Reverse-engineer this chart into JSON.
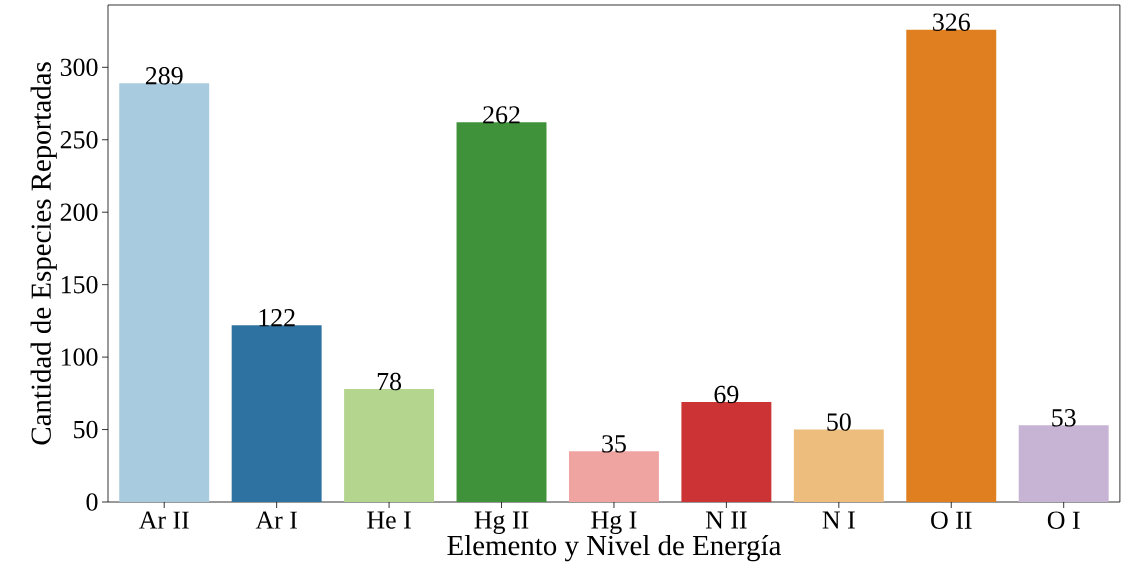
{
  "chart_data": {
    "type": "bar",
    "xlabel": "Elemento y Nivel de Energía",
    "ylabel": "Cantidad de Especies Reportadas",
    "categories": [
      "Ar II",
      "Ar I",
      "He I",
      "Hg II",
      "Hg I",
      "N II",
      "N I",
      "O II",
      "O I"
    ],
    "values": [
      289,
      122,
      78,
      262,
      35,
      69,
      50,
      326,
      53
    ],
    "colors": [
      "#a8cbe0",
      "#2e72a1",
      "#b4d58e",
      "#3f923a",
      "#f0a4a2",
      "#cb3335",
      "#ecbd7c",
      "#e07f1f",
      "#c7b3d4"
    ],
    "ylim": [
      0,
      343
    ],
    "yticks": [
      0,
      50,
      100,
      150,
      200,
      250,
      300
    ],
    "data_labels": true,
    "grid": false
  }
}
